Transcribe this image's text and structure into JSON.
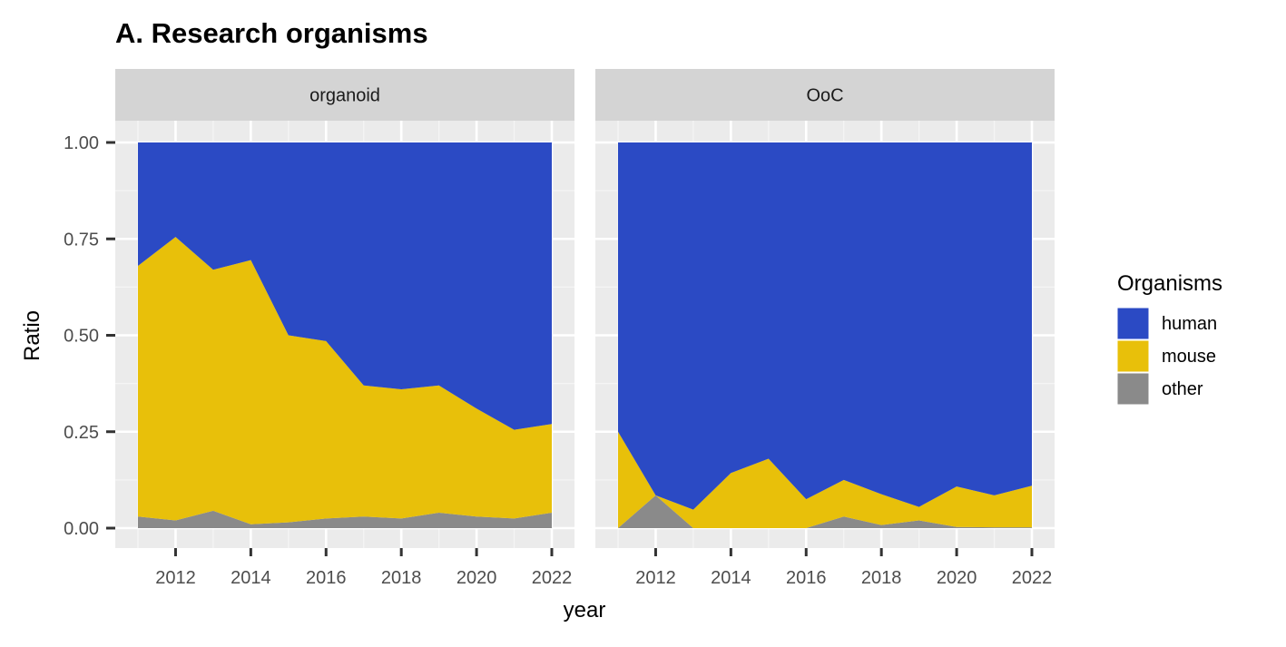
{
  "chart_data": {
    "type": "area",
    "stacked": "fill",
    "title": "A. Research organisms",
    "xlabel": "year",
    "ylabel": "Ratio",
    "ylim": [
      0,
      1
    ],
    "xlim": [
      2011,
      2022
    ],
    "x_ticks": [
      2012,
      2014,
      2016,
      2018,
      2020,
      2022
    ],
    "y_ticks": [
      0,
      0.25,
      0.5,
      0.75,
      1.0
    ],
    "y_tick_labels": [
      "0.00",
      "0.25",
      "0.50",
      "0.75",
      "1.00"
    ],
    "grid": true,
    "legend": {
      "title": "Organisms",
      "position": "right",
      "entries": [
        "human",
        "mouse",
        "other"
      ]
    },
    "colors": {
      "human": "#2B4AC4",
      "mouse": "#E8C00A",
      "other": "#8A8A8A"
    },
    "panels": [
      {
        "name": "organoid",
        "x": [
          2011,
          2012,
          2013,
          2014,
          2015,
          2016,
          2017,
          2018,
          2019,
          2020,
          2021,
          2022
        ],
        "series": [
          {
            "name": "other",
            "values": [
              0.03,
              0.02,
              0.045,
              0.01,
              0.015,
              0.025,
              0.03,
              0.025,
              0.04,
              0.03,
              0.025,
              0.04
            ]
          },
          {
            "name": "mouse",
            "values": [
              0.65,
              0.735,
              0.625,
              0.685,
              0.485,
              0.46,
              0.34,
              0.335,
              0.33,
              0.28,
              0.23,
              0.23
            ]
          },
          {
            "name": "human",
            "values": [
              0.32,
              0.245,
              0.33,
              0.305,
              0.5,
              0.515,
              0.63,
              0.64,
              0.63,
              0.69,
              0.745,
              0.73
            ]
          }
        ]
      },
      {
        "name": "OoC",
        "x": [
          2011,
          2012,
          2013,
          2014,
          2015,
          2016,
          2017,
          2018,
          2019,
          2020,
          2021,
          2022
        ],
        "series": [
          {
            "name": "other",
            "values": [
              0.0,
              0.085,
              0.0,
              0.0,
              0.0,
              0.0,
              0.03,
              0.008,
              0.02,
              0.003,
              0.002,
              0.002
            ]
          },
          {
            "name": "mouse",
            "values": [
              0.25,
              0.0,
              0.048,
              0.143,
              0.18,
              0.075,
              0.095,
              0.08,
              0.035,
              0.105,
              0.083,
              0.108
            ]
          },
          {
            "name": "human",
            "values": [
              0.75,
              0.915,
              0.952,
              0.857,
              0.82,
              0.925,
              0.875,
              0.912,
              0.945,
              0.892,
              0.915,
              0.89
            ]
          }
        ]
      }
    ]
  }
}
